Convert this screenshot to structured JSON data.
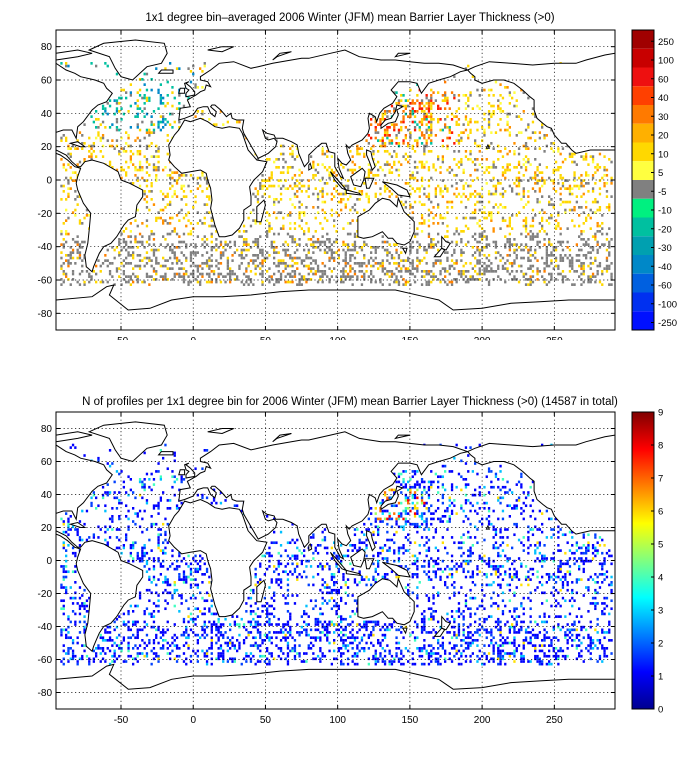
{
  "panels": [
    {
      "title": "1x1 degree bin–averaged 2006 Winter (JFM) mean Barrier Layer Thickness (>0)",
      "x_ticks": [
        -50,
        0,
        50,
        100,
        150,
        200,
        250
      ],
      "y_ticks": [
        80,
        60,
        40,
        20,
        0,
        -20,
        -40,
        -60,
        -80
      ],
      "xlim": [
        -95,
        292
      ],
      "ylim": [
        -90,
        90
      ],
      "colorbar": {
        "type": "discrete",
        "labels": [
          "250",
          "100",
          "60",
          "40",
          "30",
          "20",
          "10",
          "5",
          "-5",
          "-10",
          "-20",
          "-30",
          "-40",
          "-60",
          "-100",
          "-250"
        ],
        "colors": [
          "#a00000",
          "#c80000",
          "#ee1010",
          "#ff4000",
          "#ff7a00",
          "#ffb000",
          "#ffd800",
          "#ffff40",
          "#808080",
          "#00f080",
          "#00c0a0",
          "#00a0b0",
          "#0088c8",
          "#0060e0",
          "#0030f0",
          "#0010ff"
        ]
      }
    },
    {
      "title": "N of profiles per 1x1 degree bin for 2006 Winter (JFM) mean Barrier Layer Thickness (>0) (14587 in total)",
      "x_ticks": [
        -50,
        0,
        50,
        100,
        150,
        200,
        250
      ],
      "y_ticks": [
        80,
        60,
        40,
        20,
        0,
        -20,
        -40,
        -60,
        -80
      ],
      "xlim": [
        -95,
        292
      ],
      "ylim": [
        -90,
        90
      ],
      "colorbar": {
        "type": "continuous",
        "labels": [
          "9",
          "8",
          "7",
          "6",
          "5",
          "4",
          "3",
          "2",
          "1",
          "0"
        ],
        "range": [
          0,
          9
        ]
      }
    }
  ]
}
